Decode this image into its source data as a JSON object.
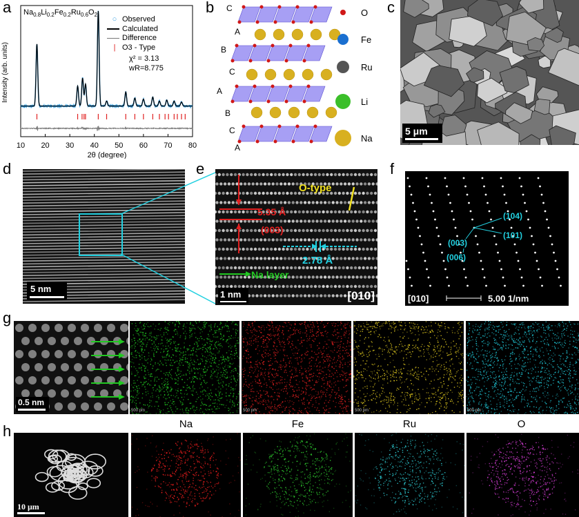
{
  "panels": {
    "a": "a",
    "b": "b",
    "c": "c",
    "d": "d",
    "e": "e",
    "f": "f",
    "g": "g",
    "h": "h"
  },
  "panel_a": {
    "formula": "Na0.8Li0.2Fe0.2Ru0.6O2",
    "formula_parts": [
      {
        "t": "Na",
        "sub": false
      },
      {
        "t": "0.8",
        "sub": true
      },
      {
        "t": "Li",
        "sub": false
      },
      {
        "t": "0.2",
        "sub": true
      },
      {
        "t": "Fe",
        "sub": false
      },
      {
        "t": "0.2",
        "sub": true
      },
      {
        "t": "Ru",
        "sub": false
      },
      {
        "t": "0.6",
        "sub": true
      },
      {
        "t": "O",
        "sub": false
      },
      {
        "t": "2",
        "sub": true
      }
    ],
    "legend": {
      "observed": "Observed",
      "calculated": "Calculated",
      "difference": "Difference",
      "o3": "O3 - Type"
    },
    "chi2": "χ² = 3.13",
    "wr": "wR=8.775",
    "colors": {
      "observed": "#3aa0e0",
      "calculated": "#000000",
      "difference": "#777777",
      "bragg": "#e02020"
    }
  },
  "chart_data": {
    "type": "line",
    "xlabel": "2θ (degree)",
    "ylabel": "Intensity (arb. units)",
    "xlim": [
      10,
      80
    ],
    "xticks": [
      10,
      20,
      30,
      40,
      50,
      60,
      70,
      80
    ],
    "series": [
      {
        "name": "Observed"
      },
      {
        "name": "Calculated"
      },
      {
        "name": "Difference"
      }
    ],
    "peaks": [
      {
        "x": 16.6,
        "y": 0.62
      },
      {
        "x": 33.2,
        "y": 0.2
      },
      {
        "x": 35.2,
        "y": 0.28
      },
      {
        "x": 36.4,
        "y": 0.22
      },
      {
        "x": 41.6,
        "y": 0.95
      },
      {
        "x": 45.0,
        "y": 0.05
      },
      {
        "x": 52.8,
        "y": 0.14
      },
      {
        "x": 56.5,
        "y": 0.08
      },
      {
        "x": 60.0,
        "y": 0.07
      },
      {
        "x": 63.8,
        "y": 0.09
      },
      {
        "x": 66.5,
        "y": 0.05
      },
      {
        "x": 69.5,
        "y": 0.06
      },
      {
        "x": 72.5,
        "y": 0.05
      },
      {
        "x": 75.5,
        "y": 0.04
      }
    ],
    "bragg_positions": [
      16.6,
      33.2,
      35.0,
      35.8,
      36.4,
      41.6,
      45.0,
      52.8,
      56.5,
      60.0,
      63.8,
      66.5,
      68.8,
      70.2,
      72.5,
      73.8,
      75.5,
      77.0
    ],
    "baseline": 0.03
  },
  "panel_b": {
    "stack_left": [
      "C",
      "A",
      "B",
      "C",
      "A",
      "B",
      "C",
      "A"
    ],
    "legend": [
      {
        "label": "O",
        "color": "#d01818",
        "size": 4
      },
      {
        "label": "Fe",
        "color": "#1a6fd0",
        "size": 8
      },
      {
        "label": "Ru",
        "color": "#555555",
        "size": 9
      },
      {
        "label": "Li",
        "color": "#3bbf2a",
        "size": 11
      },
      {
        "label": "Na",
        "color": "#d8b020",
        "size": 12
      }
    ],
    "layer_color": "#8a7ff0"
  },
  "panel_c": {
    "scalebar": "5 μm"
  },
  "panel_d": {
    "scalebar": "5 nm"
  },
  "panel_e": {
    "otype": "O-type",
    "spacing1": "5.35 Å",
    "plane1": "(003)",
    "spacing2": "2.78 Å",
    "na_layer": "Na layer",
    "scalebar": "1 nm",
    "zone": "[010]"
  },
  "panel_f": {
    "labels": [
      "(104)",
      "(101)",
      "(003)",
      "(006)"
    ],
    "zone": "[010]",
    "scalebar": "5.00  1/nm"
  },
  "panel_g": {
    "scalebar": "0.5 nm",
    "map_caption": "500 pm",
    "map_colors": [
      "#22c822",
      "#e02020",
      "#e8d020",
      "#20c8d8"
    ]
  },
  "panel_h": {
    "scalebar": "10 μm",
    "elements": [
      "Na",
      "Fe",
      "Ru",
      "O"
    ],
    "colors": [
      "#ff2020",
      "#30d030",
      "#30d8e0",
      "#e040e0"
    ]
  }
}
